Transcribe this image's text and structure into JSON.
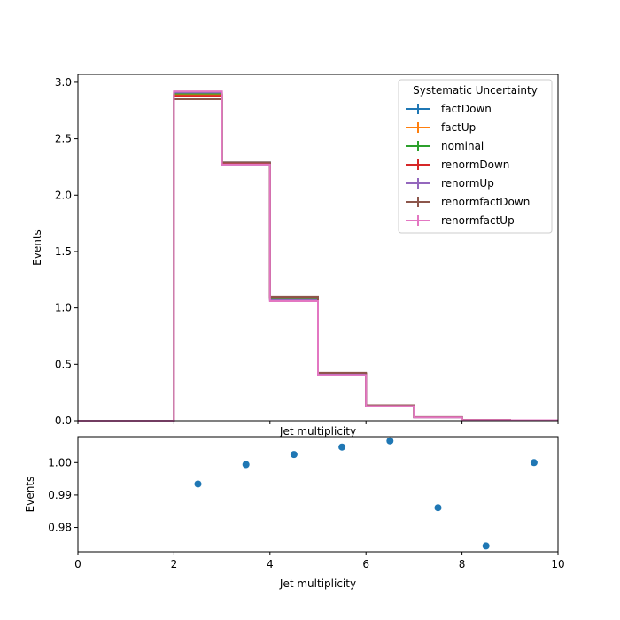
{
  "chart_data": [
    {
      "type": "step",
      "xlabel": "Jet multiplicity",
      "ylabel": "Events",
      "xlim": [
        0,
        10
      ],
      "ylim": [
        0,
        3.07
      ],
      "xticks": [
        "",
        "",
        "",
        "",
        "",
        ""
      ],
      "yticks": [
        "0.0",
        "0.5",
        "1.0",
        "1.5",
        "2.0",
        "2.5",
        "3.0"
      ],
      "bin_edges": [
        0,
        1,
        2,
        3,
        4,
        5,
        6,
        7,
        8,
        9,
        10
      ],
      "legend": {
        "title": "Systematic Uncertainty",
        "placement": "top-right"
      },
      "series": [
        {
          "name": "factDown",
          "color": "#1f77b4",
          "values": [
            0,
            0,
            2.89,
            2.29,
            1.09,
            0.42,
            0.135,
            0.031,
            0.007,
            0.004
          ]
        },
        {
          "name": "factUp",
          "color": "#ff7f0e",
          "values": [
            0,
            0,
            2.89,
            2.28,
            1.08,
            0.415,
            0.133,
            0.03,
            0.006,
            0.004
          ]
        },
        {
          "name": "nominal",
          "color": "#2ca02c",
          "values": [
            0,
            0,
            2.9,
            2.28,
            1.08,
            0.415,
            0.133,
            0.03,
            0.006,
            0.004
          ]
        },
        {
          "name": "renormDown",
          "color": "#d62728",
          "values": [
            0,
            0,
            2.88,
            2.28,
            1.09,
            0.418,
            0.134,
            0.031,
            0.007,
            0.004
          ]
        },
        {
          "name": "renormUp",
          "color": "#9467bd",
          "values": [
            0,
            0,
            2.91,
            2.27,
            1.07,
            0.41,
            0.131,
            0.029,
            0.006,
            0.004
          ]
        },
        {
          "name": "renormfactDown",
          "color": "#8c564b",
          "values": [
            0,
            0,
            2.85,
            2.29,
            1.1,
            0.425,
            0.137,
            0.032,
            0.007,
            0.004
          ]
        },
        {
          "name": "renormfactUp",
          "color": "#e377c2",
          "values": [
            0,
            0,
            2.92,
            2.27,
            1.06,
            0.405,
            0.13,
            0.029,
            0.006,
            0.004
          ]
        }
      ]
    },
    {
      "type": "scatter",
      "xlabel": "Jet multiplicity",
      "ylabel": "Events",
      "xlim": [
        0,
        10
      ],
      "ylim": [
        0.9725,
        1.008
      ],
      "xticks": [
        "0",
        "2",
        "4",
        "6",
        "8",
        "10"
      ],
      "yticks": [
        "0.98",
        "0.99",
        "1.00"
      ],
      "color": "#1f77b4",
      "x": [
        2.5,
        3.5,
        4.5,
        5.5,
        6.5,
        7.5,
        8.5,
        9.5
      ],
      "y": [
        0.9934,
        0.9994,
        1.0025,
        1.0048,
        1.0067,
        0.9861,
        0.9743,
        1.0
      ]
    }
  ]
}
